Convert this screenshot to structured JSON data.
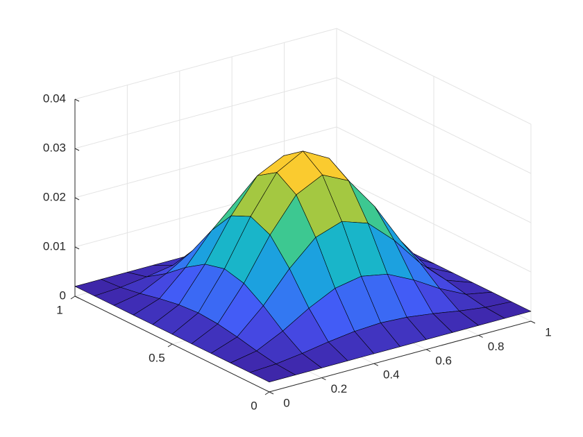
{
  "chart_data": {
    "type": "surface",
    "x": [
      0,
      0.1,
      0.2,
      0.3,
      0.4,
      0.5,
      0.6,
      0.7,
      0.8,
      0.9,
      1
    ],
    "y": [
      0,
      0.1,
      0.2,
      0.3,
      0.4,
      0.5,
      0.6,
      0.7,
      0.8,
      0.9,
      1
    ],
    "z": [
      [
        0.002,
        0.002,
        0.002,
        0.002,
        0.002,
        0.002,
        0.002,
        0.002,
        0.002,
        0.002,
        0.002
      ],
      [
        0.002,
        0.0023,
        0.003,
        0.0039,
        0.0046,
        0.0049,
        0.0046,
        0.0039,
        0.003,
        0.0023,
        0.002
      ],
      [
        0.002,
        0.003,
        0.0056,
        0.0088,
        0.0114,
        0.0124,
        0.0114,
        0.0088,
        0.0056,
        0.003,
        0.002
      ],
      [
        0.002,
        0.0039,
        0.0088,
        0.0149,
        0.0198,
        0.0216,
        0.0198,
        0.0149,
        0.0088,
        0.0039,
        0.002
      ],
      [
        0.002,
        0.0046,
        0.0114,
        0.0198,
        0.0265,
        0.0291,
        0.0265,
        0.0198,
        0.0114,
        0.0046,
        0.002
      ],
      [
        0.002,
        0.0049,
        0.0124,
        0.0216,
        0.0291,
        0.032,
        0.0291,
        0.0216,
        0.0124,
        0.0049,
        0.002
      ],
      [
        0.002,
        0.0046,
        0.0114,
        0.0198,
        0.0265,
        0.0291,
        0.0265,
        0.0198,
        0.0114,
        0.0046,
        0.002
      ],
      [
        0.002,
        0.0039,
        0.0088,
        0.0149,
        0.0198,
        0.0216,
        0.0198,
        0.0149,
        0.0088,
        0.0039,
        0.002
      ],
      [
        0.002,
        0.003,
        0.0056,
        0.0088,
        0.0114,
        0.0124,
        0.0114,
        0.0088,
        0.0056,
        0.003,
        0.002
      ],
      [
        0.002,
        0.0023,
        0.003,
        0.0039,
        0.0046,
        0.0049,
        0.0046,
        0.0039,
        0.003,
        0.0023,
        0.002
      ],
      [
        0.002,
        0.002,
        0.002,
        0.002,
        0.002,
        0.002,
        0.002,
        0.002,
        0.002,
        0.002,
        0.002
      ]
    ],
    "xlim": [
      0,
      1
    ],
    "ylim": [
      0,
      1
    ],
    "zlim": [
      0,
      0.04
    ],
    "xticks": [
      0,
      0.2,
      0.4,
      0.6,
      0.8,
      1
    ],
    "yticks": [
      0,
      0.5,
      1
    ],
    "zticks": [
      0,
      0.01,
      0.02,
      0.03,
      0.04
    ],
    "grid": true,
    "colormap": "parula",
    "edge_color": "#000000"
  }
}
